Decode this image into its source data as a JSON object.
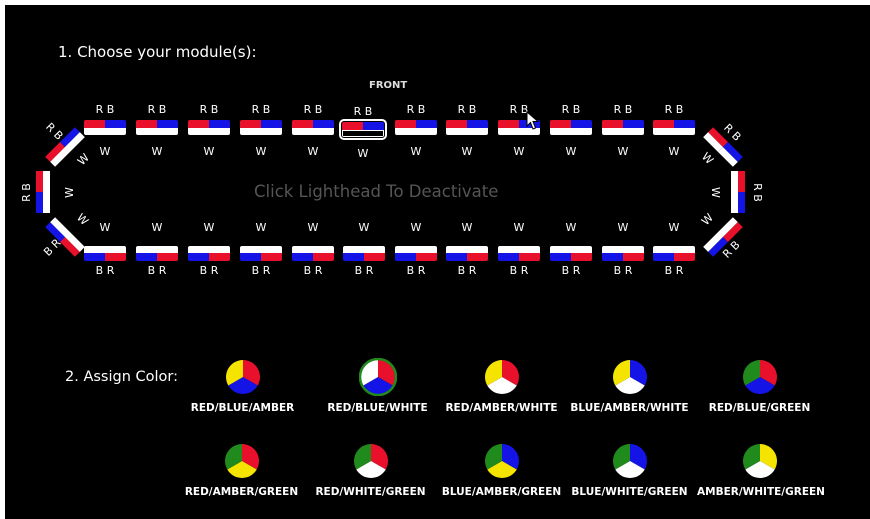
{
  "step1_label": "1. Choose your module(s):",
  "step2_label": "2. Assign Color:",
  "front_label": "FRONT",
  "hint": "Click Lighthead To Deactivate",
  "module_labels": {
    "rb": "R B",
    "br": "B R",
    "w": "W"
  },
  "colors": {
    "red": "#e8102a",
    "blue": "#1414e6",
    "white": "#ffffff",
    "amber": "#f5e400",
    "green": "#218a1c"
  },
  "selected_module": "top-6",
  "palettes": [
    {
      "name": "RED/BLUE/AMBER",
      "colors": [
        "red",
        "blue",
        "amber"
      ],
      "selected": false
    },
    {
      "name": "RED/BLUE/WHITE",
      "colors": [
        "red",
        "blue",
        "white"
      ],
      "selected": true
    },
    {
      "name": "RED/AMBER/WHITE",
      "colors": [
        "red",
        "white",
        "amber"
      ],
      "selected": false
    },
    {
      "name": "BLUE/AMBER/WHITE",
      "colors": [
        "blue",
        "white",
        "amber"
      ],
      "selected": false
    },
    {
      "name": "RED/BLUE/GREEN",
      "colors": [
        "red",
        "blue",
        "green"
      ],
      "selected": false
    },
    {
      "name": "RED/AMBER/GREEN",
      "colors": [
        "red",
        "amber",
        "green"
      ],
      "selected": false
    },
    {
      "name": "RED/WHITE/GREEN",
      "colors": [
        "red",
        "white",
        "green"
      ],
      "selected": false
    },
    {
      "name": "BLUE/AMBER/GREEN",
      "colors": [
        "blue",
        "amber",
        "green"
      ],
      "selected": false
    },
    {
      "name": "BLUE/WHITE/GREEN",
      "colors": [
        "blue",
        "white",
        "green"
      ],
      "selected": false
    },
    {
      "name": "AMBER/WHITE/GREEN",
      "colors": [
        "amber",
        "white",
        "green"
      ],
      "selected": false
    }
  ]
}
